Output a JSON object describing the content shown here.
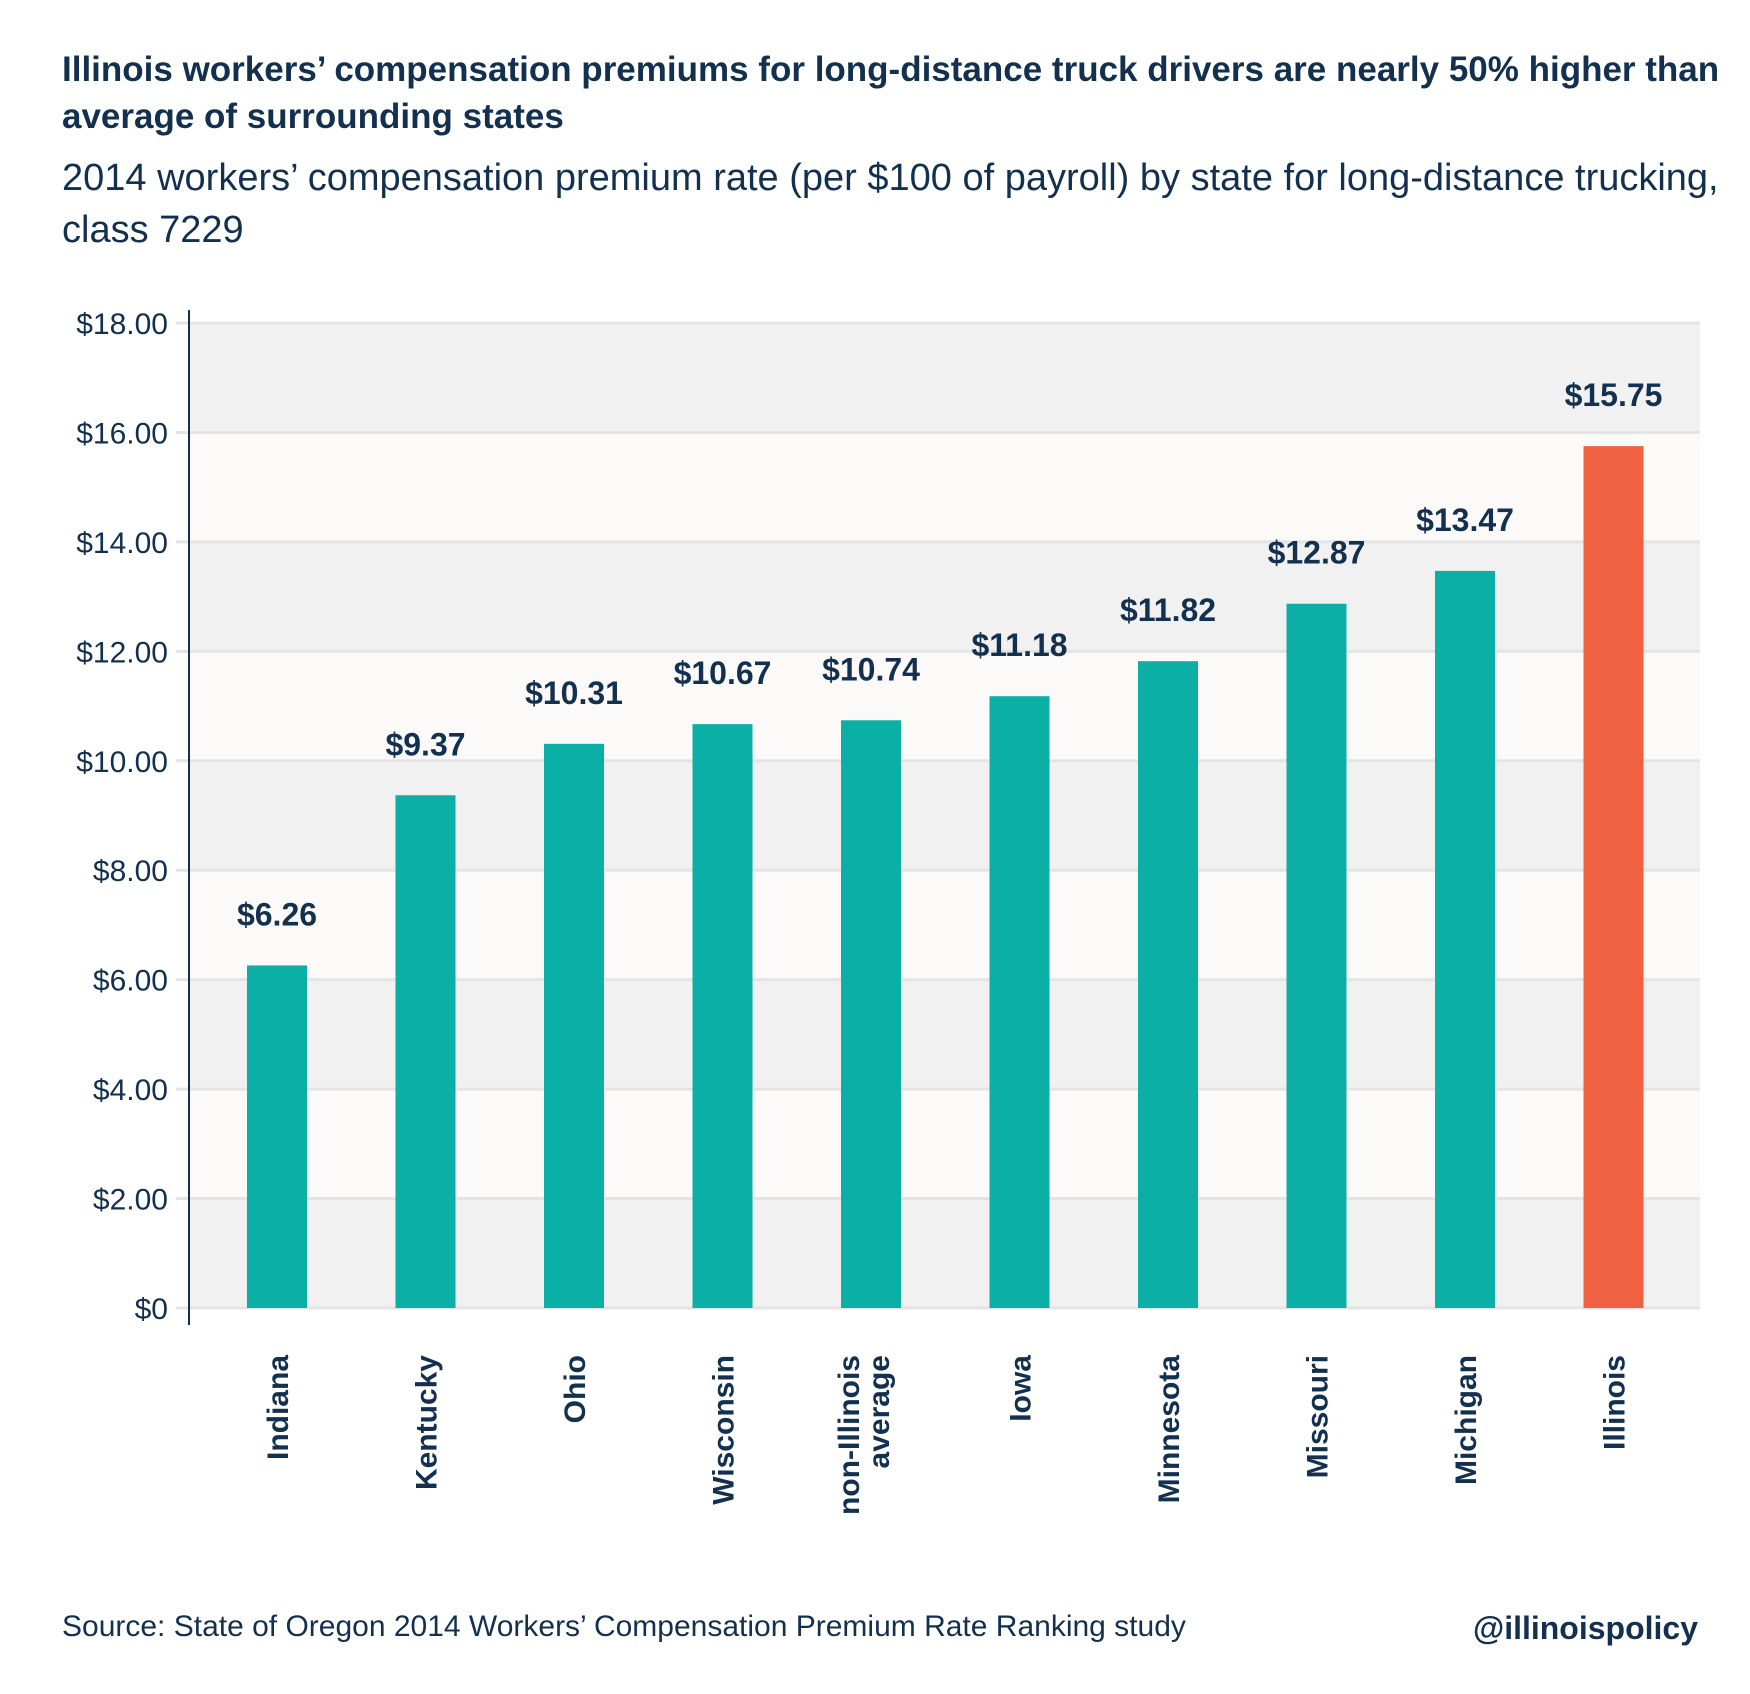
{
  "title": "Illinois workers’ compensation premiums for long-distance truck drivers are nearly 50% higher than average of surrounding states",
  "subtitle": "2014 workers’ compensation premium rate (per $100 of payroll) by state for long-distance trucking, class 7229",
  "source": "Source: State of Oregon 2014 Workers’ Compensation Premium Rate Ranking study",
  "handle": "@illinoispolicy",
  "colors": {
    "default_bar": "#0bafa5",
    "highlight_bar": "#f06142",
    "text": "#13304f",
    "band_dark": "#f1f1f1",
    "band_light": "#fbfaf9",
    "grid": "#e4e4e4"
  },
  "chart_data": {
    "type": "bar",
    "orientation": "vertical",
    "categories": [
      "Indiana",
      "Kentucky",
      "Ohio",
      "Wisconsin",
      "non-Illinois average",
      "Iowa",
      "Minnesota",
      "Missouri",
      "Michigan",
      "Illinois"
    ],
    "values": [
      6.26,
      9.37,
      10.31,
      10.67,
      10.74,
      11.18,
      11.82,
      12.87,
      13.47,
      15.75
    ],
    "data_labels": [
      "$6.26",
      "$9.37",
      "$10.31",
      "$10.67",
      "$10.74",
      "$11.18",
      "$11.82",
      "$12.87",
      "$13.47",
      "$15.75"
    ],
    "highlight": "Illinois",
    "ylim": [
      0,
      18
    ],
    "yticks": [
      0,
      2,
      4,
      6,
      8,
      10,
      12,
      14,
      16,
      18
    ],
    "ytick_labels": [
      "$0",
      "$2.00",
      "$4.00",
      "$6.00",
      "$8.00",
      "$10.00",
      "$12.00",
      "$14.00",
      "$16.00",
      "$18.00"
    ],
    "xlabel": "",
    "ylabel": "",
    "grid": true,
    "legend": "none"
  }
}
